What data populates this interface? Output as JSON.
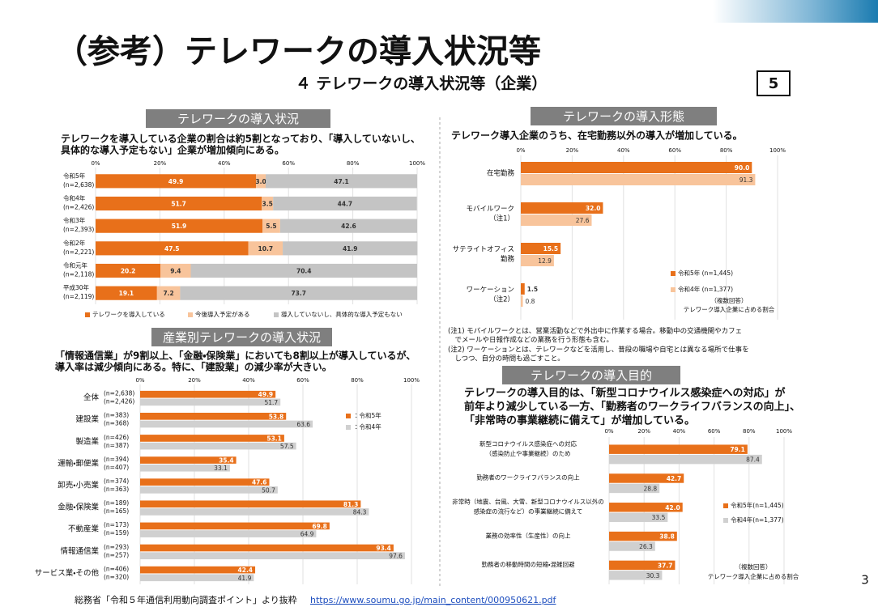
{
  "slide": {
    "title": "（参考）テレワークの導入状況等",
    "subtitle": "４ テレワークの導入状況等（企業）",
    "badge": "5",
    "page_number": "3",
    "footer_text": "総務省「令和５年通信利用動向調査ポイント」より抜粋",
    "footer_url": "https://www.soumu.go.jp/main_content/000950621.pdf"
  },
  "chart_data": [
    {
      "type": "bar",
      "orientation": "horizontal",
      "stacked": true,
      "heading": "テレワークの導入状況",
      "description": [
        "テレワークを導入している企業の割合は約5割となっており、「導入していないし、",
        "具体的な導入予定もない」企業が増加傾向にある。"
      ],
      "categories": [
        "令和5年",
        "令和4年",
        "令和3年",
        "令和2年",
        "令和元年",
        "平成30年"
      ],
      "category_notes": [
        "(n=2,638)",
        "(n=2,426)",
        "(n=2,393)",
        "(n=2,221)",
        "(n=2,118)",
        "(n=2,119)"
      ],
      "series": [
        {
          "name": "テレワークを導入している",
          "color": "#e8701a",
          "values": [
            49.9,
            51.7,
            51.9,
            47.5,
            20.2,
            19.1
          ],
          "value_labels": [
            "49.9",
            "51.7",
            "51.9",
            "47.5",
            "20.2",
            "19.1"
          ]
        },
        {
          "name": "今後導入予定がある",
          "color": "#f8c49b",
          "values": [
            3.0,
            3.5,
            5.5,
            10.7,
            9.4,
            7.2
          ],
          "value_labels": [
            "3.0",
            "3.5",
            "5.5",
            "10.7",
            "9.4",
            "7.2"
          ]
        },
        {
          "name": "導入していないし、具体的な導入予定もない",
          "color": "#c4c4c4",
          "values": [
            47.1,
            44.7,
            42.6,
            41.9,
            70.4,
            73.7
          ],
          "value_labels": [
            "47.1",
            "44.7",
            "42.6",
            "41.9",
            "70.4",
            "73.7"
          ]
        }
      ],
      "xlim": [
        0,
        100
      ],
      "xticks": [
        {
          "value": 0,
          "label": "0%"
        },
        {
          "value": 20,
          "label": "20%"
        },
        {
          "value": 40,
          "label": "40%"
        },
        {
          "value": 60,
          "label": "60%"
        },
        {
          "value": 80,
          "label": "80%"
        },
        {
          "value": 100,
          "label": "100%"
        }
      ],
      "legend": "bottom"
    },
    {
      "type": "bar",
      "orientation": "horizontal",
      "stacked": false,
      "heading": "テレワークの導入形態",
      "description": [
        "テレワーク導入企業のうち、在宅勤務以外の導入が増加している。"
      ],
      "categories": [
        [
          "在宅勤務"
        ],
        [
          "モバイルワーク",
          "（注1）"
        ],
        [
          "サテライトオフィス",
          "勤務"
        ],
        [
          "ワーケーション",
          "（注2）"
        ]
      ],
      "series": [
        {
          "name": "令和5年 (n=1,445)",
          "color": "#e8701a",
          "values": [
            90.0,
            32.0,
            15.5,
            1.5
          ],
          "value_labels": [
            "90.0",
            "32.0",
            "15.5",
            "1.5"
          ]
        },
        {
          "name": "令和4年 (n=1,377)",
          "color": "#f8c49b",
          "values": [
            91.3,
            27.6,
            12.9,
            0.8
          ],
          "value_labels": [
            "91.3",
            "27.6",
            "12.9",
            "0.8"
          ]
        }
      ],
      "xlim": [
        0,
        100
      ],
      "xticks": [
        {
          "value": 0,
          "label": "0%"
        },
        {
          "value": 20,
          "label": "20%"
        },
        {
          "value": 40,
          "label": "40%"
        },
        {
          "value": 60,
          "label": "60%"
        },
        {
          "value": 80,
          "label": "80%"
        },
        {
          "value": 100,
          "label": "100%"
        }
      ],
      "legend": "right",
      "legend_notes": [
        "（複数回答）",
        "テレワーク導入企業に占める割合"
      ],
      "notes": [
        "(注1) モバイルワークとは、営業活動などで外出中に作業する場合。移動中の交通機関やカフェ",
        "　でメールや日報作成などの業務を行う形態も含む。",
        "(注2) ワーケーションとは、テレワークなどを活用し、普段の職場や自宅とは異なる場所で仕事を",
        "　しつつ、自分の時間も過ごすこと。"
      ]
    },
    {
      "type": "bar",
      "orientation": "horizontal",
      "stacked": false,
      "heading": "産業別テレワークの導入状況",
      "description": [
        "「情報通信業」が9割以上、「金融・保険業」においても8割以上が導入しているが、",
        "導入率は減少傾向にある。特に、「建設業」の減少率が大きい。"
      ],
      "categories": [
        "全体",
        "建設業",
        "製造業",
        "運輸・郵便業",
        "卸売・小売業",
        "金融・保険業",
        "不動産業",
        "情報通信業",
        "サービス業・その他"
      ],
      "category_notes": [
        [
          "(n=2,638)",
          "(n=2,426)"
        ],
        [
          "(n=383)",
          "(n=368)"
        ],
        [
          "(n=426)",
          "(n=387)"
        ],
        [
          "(n=394)",
          "(n=407)"
        ],
        [
          "(n=374)",
          "(n=363)"
        ],
        [
          "(n=189)",
          "(n=165)"
        ],
        [
          "(n=173)",
          "(n=159)"
        ],
        [
          "(n=293)",
          "(n=257)"
        ],
        [
          "(n=406)",
          "(n=320)"
        ]
      ],
      "series": [
        {
          "name": "：令和5年",
          "color": "#e8701a",
          "values": [
            49.9,
            53.8,
            53.1,
            35.4,
            47.6,
            81.3,
            69.8,
            93.4,
            42.4
          ],
          "value_labels": [
            "49.9",
            "53.8",
            "53.1",
            "35.4",
            "47.6",
            "81.3",
            "69.8",
            "93.4",
            "42.4"
          ]
        },
        {
          "name": "：令和4年",
          "color": "#d0d0d0",
          "values": [
            51.7,
            63.6,
            57.5,
            33.1,
            50.7,
            84.3,
            64.9,
            97.6,
            41.9
          ],
          "value_labels": [
            "51.7",
            "63.6",
            "57.5",
            "33.1",
            "50.7",
            "84.3",
            "64.9",
            "97.6",
            "41.9"
          ]
        }
      ],
      "xlim": [
        0,
        100
      ],
      "xticks": [
        {
          "value": 0,
          "label": "0%"
        },
        {
          "value": 20,
          "label": "20%"
        },
        {
          "value": 40,
          "label": "40%"
        },
        {
          "value": 60,
          "label": "60%"
        },
        {
          "value": 80,
          "label": "80%"
        },
        {
          "value": 100,
          "label": "100%"
        }
      ],
      "legend": "right"
    },
    {
      "type": "bar",
      "orientation": "horizontal",
      "stacked": false,
      "heading": "テレワークの導入目的",
      "description": [
        "テレワークの導入目的は、「新型コロナウイルス感染症への対応」が",
        "前年より減少している一方、「勤務者のワークライフバランスの向上」、",
        "「非常時の事業継続に備えて」が増加している。"
      ],
      "categories": [
        [
          "新型コロナウイルス感染症への対応",
          "（感染防止や事業継続）のため"
        ],
        [
          "勤務者のワークライフバランスの向上"
        ],
        [
          "非常時（地震、台風、大雪、新型コロナウイルス以外の",
          "感染症の流行など）の事業継続に備えて"
        ],
        [
          "業務の効率性（生産性）の向上"
        ],
        [
          "勤務者の移動時間の短縮・混雑回避"
        ]
      ],
      "series": [
        {
          "name": "令和5年(n=1,445)",
          "color": "#e8701a",
          "values": [
            79.1,
            42.7,
            42.0,
            38.8,
            37.7
          ],
          "value_labels": [
            "79.1",
            "42.7",
            "42.0",
            "38.8",
            "37.7"
          ]
        },
        {
          "name": "令和4年(n=1,377)",
          "color": "#d0d0d0",
          "values": [
            87.4,
            28.8,
            33.5,
            26.3,
            30.3
          ],
          "value_labels": [
            "87.4",
            "28.8",
            "33.5",
            "26.3",
            "30.3"
          ]
        }
      ],
      "xlim": [
        0,
        100
      ],
      "xticks": [
        {
          "value": 0,
          "label": "0%"
        },
        {
          "value": 20,
          "label": "20%"
        },
        {
          "value": 40,
          "label": "40%"
        },
        {
          "value": 60,
          "label": "60%"
        },
        {
          "value": 80,
          "label": "80%"
        },
        {
          "value": 100,
          "label": "100%"
        }
      ],
      "legend": "right",
      "legend_notes": [
        "（複数回答）",
        "テレワーク導入企業に占める割合"
      ]
    }
  ]
}
